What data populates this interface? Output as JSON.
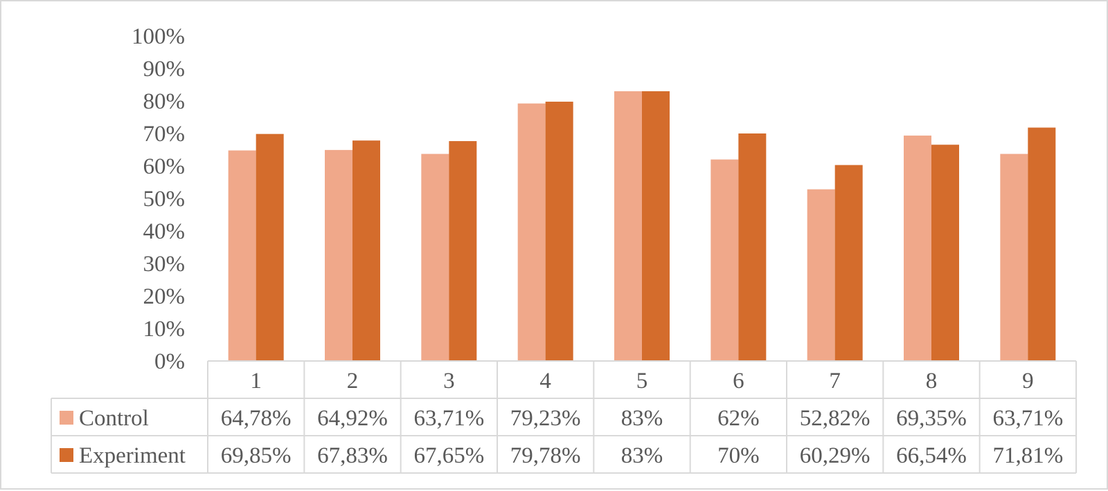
{
  "chart_data": {
    "type": "bar",
    "categories": [
      "1",
      "2",
      "3",
      "4",
      "5",
      "6",
      "7",
      "8",
      "9"
    ],
    "series": [
      {
        "name": "Control",
        "color": "#f0a88a",
        "values": [
          64.78,
          64.92,
          63.71,
          79.23,
          83,
          62,
          52.82,
          69.35,
          63.71
        ],
        "labels": [
          "64,78%",
          "64,92%",
          "63,71%",
          "79,23%",
          "83%",
          "62%",
          "52,82%",
          "69,35%",
          "63,71%"
        ]
      },
      {
        "name": "Experiment",
        "color": "#d46c2c",
        "values": [
          69.85,
          67.83,
          67.65,
          79.78,
          83,
          70,
          60.29,
          66.54,
          71.81
        ],
        "labels": [
          "69,85%",
          "67,83%",
          "67,65%",
          "79,78%",
          "83%",
          "70%",
          "60,29%",
          "66,54%",
          "71,81%"
        ]
      }
    ],
    "y_ticks": [
      "0%",
      "10%",
      "20%",
      "30%",
      "40%",
      "50%",
      "60%",
      "70%",
      "80%",
      "90%",
      "100%"
    ],
    "ylim": [
      0,
      100
    ],
    "grid": false,
    "legend": "data-table",
    "title": "",
    "xlabel": "",
    "ylabel": ""
  }
}
